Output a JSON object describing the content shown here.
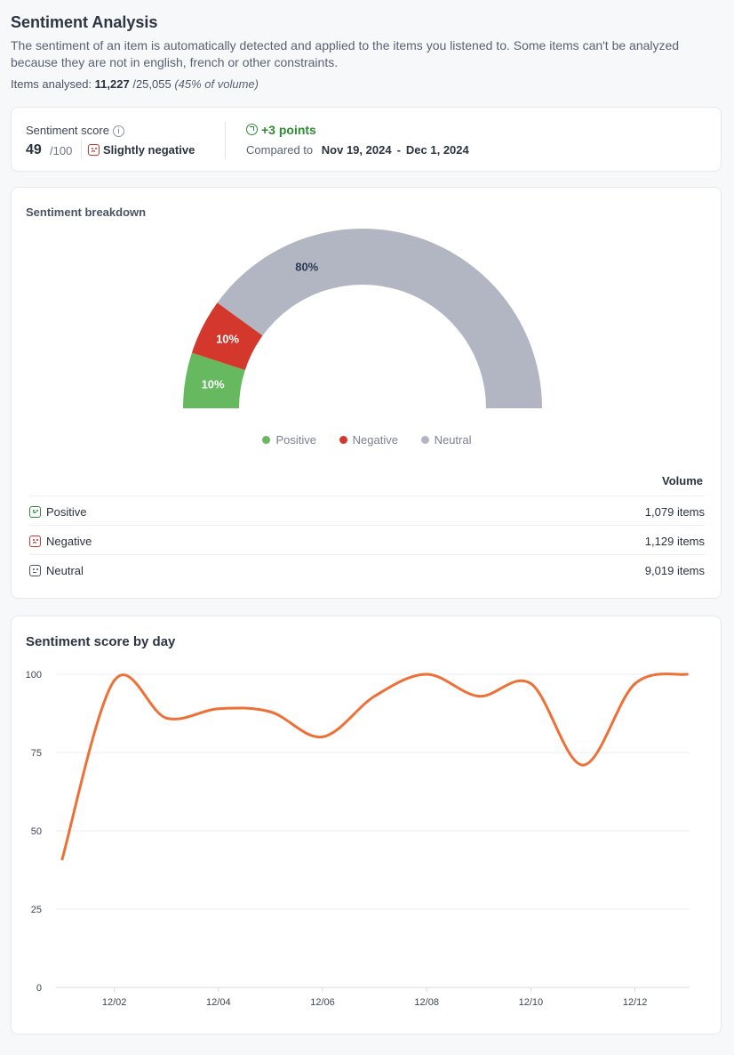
{
  "header": {
    "title": "Sentiment Analysis",
    "description": "The sentiment of an item is automatically detected and applied to the items you listened to. Some items can't be analyzed because they are not in english, french or other constraints.",
    "analysed_label": "Items analysed:",
    "analysed_count": "11,227",
    "analysed_total": "/25,055",
    "analysed_pct": "(45% of volume)"
  },
  "score": {
    "label": "Sentiment score",
    "info_icon": "info-icon",
    "value": "49",
    "max": "/100",
    "mood": "Slightly negative",
    "mood_icon": "sad-face-icon",
    "delta": "+3 points",
    "delta_icon": "trend-up-icon",
    "compared_label": "Compared to",
    "compared_start": "Nov 19, 2024",
    "compared_sep": "-",
    "compared_end": "Dec 1, 2024",
    "colors": {
      "positive_delta": "#2f8a34",
      "negative_mood": "#d0342c"
    }
  },
  "breakdown": {
    "title": "Sentiment breakdown",
    "gauge": [
      {
        "name": "Positive",
        "percent": 10,
        "label": "10%",
        "color": "#66b95e"
      },
      {
        "name": "Negative",
        "percent": 10,
        "label": "10%",
        "color": "#d4372c"
      },
      {
        "name": "Neutral",
        "percent": 80,
        "label": "80%",
        "color": "#b1b6c2"
      }
    ],
    "legend": [
      {
        "label": "Positive",
        "color": "#66b95e"
      },
      {
        "label": "Negative",
        "color": "#d4372c"
      },
      {
        "label": "Neutral",
        "color": "#b1b6c2"
      }
    ],
    "volume_header": "Volume",
    "rows": [
      {
        "label": "Positive",
        "value": "1,079 items",
        "icon": "happy-face-icon",
        "color": "#2f8a34"
      },
      {
        "label": "Negative",
        "value": "1,129 items",
        "icon": "sad-face-icon",
        "color": "#d0342c"
      },
      {
        "label": "Neutral",
        "value": "9,019 items",
        "icon": "neutral-face-icon",
        "color": "#4a5262"
      }
    ]
  },
  "line": {
    "title": "Sentiment score by day"
  },
  "chart_data": {
    "type": "line",
    "x": [
      "12/01",
      "12/02",
      "12/03",
      "12/04",
      "12/05",
      "12/06",
      "12/07",
      "12/08",
      "12/09",
      "12/10",
      "12/11",
      "12/12",
      "12/13"
    ],
    "x_tick_labels": [
      "12/02",
      "12/04",
      "12/06",
      "12/08",
      "12/10",
      "12/12"
    ],
    "series": [
      {
        "values": [
          41,
          98,
          86,
          89,
          88,
          80,
          93,
          100,
          93,
          97,
          71,
          97,
          100
        ],
        "color": "#ef7036"
      }
    ],
    "y_ticks": [
      0,
      25,
      50,
      75,
      100
    ],
    "ylim": [
      0,
      100
    ],
    "grid": true,
    "title": "Sentiment score by day",
    "xlabel": "",
    "ylabel": ""
  }
}
